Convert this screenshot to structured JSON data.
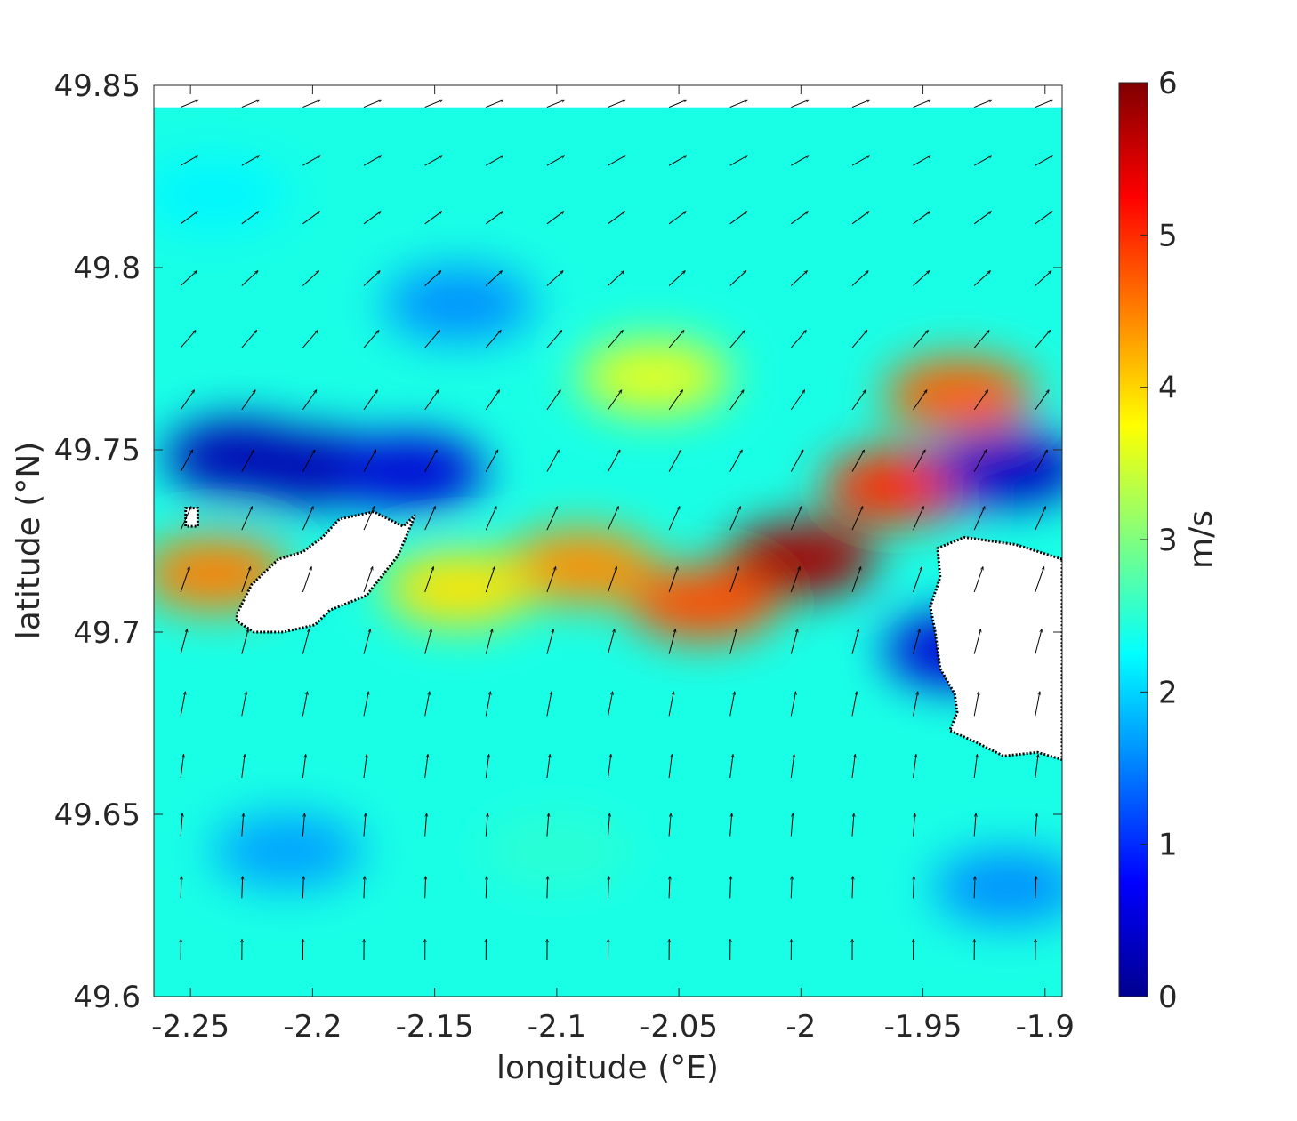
{
  "chart_data": {
    "type": "heatmap",
    "title": "",
    "xlabel": "longitude (°E)",
    "ylabel": "latitude (°N)",
    "xlim": [
      -2.265,
      -1.893
    ],
    "ylim": [
      49.6,
      49.85
    ],
    "xticks": [
      -2.25,
      -2.2,
      -2.15,
      -2.1,
      -2.05,
      -2,
      -1.95,
      -1.9
    ],
    "xtick_labels": [
      "-2.25",
      "-2.2",
      "-2.15",
      "-2.1",
      "-2.05",
      "-2",
      "-1.95",
      "-1.9"
    ],
    "yticks": [
      49.6,
      49.65,
      49.7,
      49.75,
      49.8,
      49.85
    ],
    "ytick_labels": [
      "49.6",
      "49.65",
      "49.7",
      "49.75",
      "49.8",
      "49.85"
    ],
    "colorbar": {
      "label": "m/s",
      "range": [
        0,
        6
      ],
      "ticks": [
        0,
        1,
        2,
        3,
        4,
        5,
        6
      ],
      "tick_labels": [
        "0",
        "1",
        "2",
        "3",
        "4",
        "5",
        "6"
      ],
      "colormap": "jet"
    },
    "data_top_lat": 49.844,
    "speed_regions": [
      {
        "lon": -2.0,
        "lat": 49.72,
        "speed": 5.8
      },
      {
        "lon": -1.96,
        "lat": 49.74,
        "speed": 5.0
      },
      {
        "lon": -2.04,
        "lat": 49.708,
        "speed": 4.8
      },
      {
        "lon": -1.935,
        "lat": 49.765,
        "speed": 4.7
      },
      {
        "lon": -2.09,
        "lat": 49.718,
        "speed": 4.4
      },
      {
        "lon": -2.14,
        "lat": 49.712,
        "speed": 3.9
      },
      {
        "lon": -2.06,
        "lat": 49.77,
        "speed": 3.6
      },
      {
        "lon": -2.24,
        "lat": 49.716,
        "speed": 4.5
      },
      {
        "lon": -2.2,
        "lat": 49.745,
        "speed": 0.3
      },
      {
        "lon": -2.23,
        "lat": 49.748,
        "speed": 0.3
      },
      {
        "lon": -2.16,
        "lat": 49.744,
        "speed": 0.5
      },
      {
        "lon": -1.915,
        "lat": 49.745,
        "speed": 0.4
      },
      {
        "lon": -1.935,
        "lat": 49.695,
        "speed": 0.5
      },
      {
        "lon": -2.14,
        "lat": 49.79,
        "speed": 1.6
      },
      {
        "lon": -2.21,
        "lat": 49.64,
        "speed": 1.7
      },
      {
        "lon": -1.915,
        "lat": 49.63,
        "speed": 1.6
      },
      {
        "lon": -2.24,
        "lat": 49.82,
        "speed": 2.2
      },
      {
        "lon": -2.1,
        "lat": 49.64,
        "speed": 2.5
      }
    ],
    "land": [
      {
        "name": "island-west",
        "outline": [
          [
            -2.231,
            49.705
          ],
          [
            -2.225,
            49.713
          ],
          [
            -2.214,
            49.72
          ],
          [
            -2.204,
            49.722
          ],
          [
            -2.196,
            49.726
          ],
          [
            -2.189,
            49.731
          ],
          [
            -2.175,
            49.733
          ],
          [
            -2.163,
            49.729
          ],
          [
            -2.158,
            49.732
          ],
          [
            -2.165,
            49.721
          ],
          [
            -2.178,
            49.71
          ],
          [
            -2.193,
            49.706
          ],
          [
            -2.199,
            49.702
          ],
          [
            -2.212,
            49.7
          ],
          [
            -2.224,
            49.7
          ],
          [
            -2.231,
            49.703
          ]
        ]
      },
      {
        "name": "island-east",
        "outline": [
          [
            -1.893,
            49.72
          ],
          [
            -1.912,
            49.724
          ],
          [
            -1.933,
            49.726
          ],
          [
            -1.944,
            49.723
          ],
          [
            -1.943,
            49.715
          ],
          [
            -1.947,
            49.707
          ],
          [
            -1.945,
            49.7
          ],
          [
            -1.943,
            49.69
          ],
          [
            -1.937,
            49.683
          ],
          [
            -1.936,
            49.678
          ],
          [
            -1.939,
            49.673
          ],
          [
            -1.929,
            49.67
          ],
          [
            -1.917,
            49.666
          ],
          [
            -1.903,
            49.667
          ],
          [
            -1.893,
            49.665
          ]
        ]
      },
      {
        "name": "islet",
        "outline": [
          [
            -2.252,
            49.734
          ],
          [
            -2.247,
            49.734
          ],
          [
            -2.247,
            49.729
          ],
          [
            -2.252,
            49.729
          ]
        ]
      }
    ],
    "vectors": {
      "lons": [
        -2.254,
        -2.229,
        -2.204,
        -2.179,
        -2.154,
        -2.129,
        -2.104,
        -2.079,
        -2.054,
        -2.029,
        -2.004,
        -1.979,
        -1.954,
        -1.929,
        -1.904
      ],
      "lats": [
        49.844,
        49.828,
        49.812,
        49.795,
        49.778,
        49.761,
        49.744,
        49.728,
        49.711,
        49.694,
        49.677,
        49.66,
        49.644,
        49.627,
        49.61
      ],
      "field": "tidal current direction and speed"
    }
  }
}
